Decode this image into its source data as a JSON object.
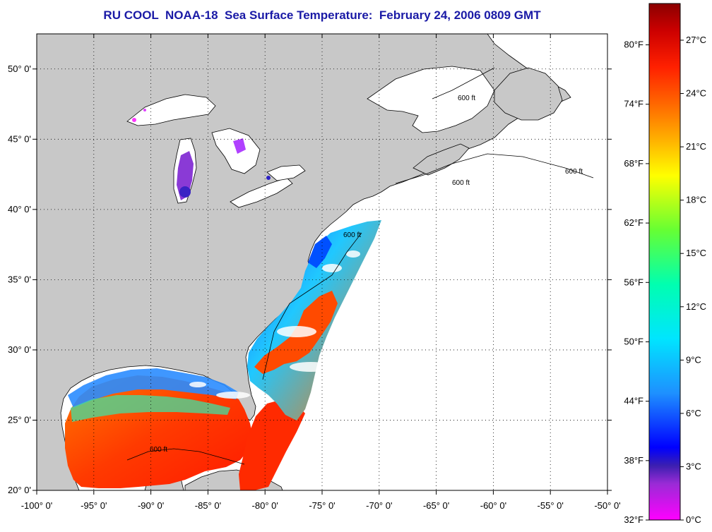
{
  "title": "RU COOL  NOAA-18  Sea Surface Temperature:  February 24, 2006 0809 GMT",
  "map": {
    "lon_range": [
      -100,
      -50
    ],
    "lat_range": [
      20,
      52.5
    ],
    "lon_ticks": [
      {
        "value": -100,
        "label": "-100° 0'"
      },
      {
        "value": -95,
        "label": "-95° 0'"
      },
      {
        "value": -90,
        "label": "-90° 0'"
      },
      {
        "value": -85,
        "label": "-85° 0'"
      },
      {
        "value": -80,
        "label": "-80° 0'"
      },
      {
        "value": -75,
        "label": "-75° 0'"
      },
      {
        "value": -70,
        "label": "-70° 0'"
      },
      {
        "value": -65,
        "label": "-65° 0'"
      },
      {
        "value": -60,
        "label": "-60° 0'"
      },
      {
        "value": -55,
        "label": "-55° 0'"
      },
      {
        "value": -50,
        "label": "-50° 0'"
      }
    ],
    "lat_ticks": [
      {
        "value": 20,
        "label": "20° 0'"
      },
      {
        "value": 25,
        "label": "25° 0'"
      },
      {
        "value": 30,
        "label": "30° 0'"
      },
      {
        "value": 35,
        "label": "35° 0'"
      },
      {
        "value": 40,
        "label": "40° 0'"
      },
      {
        "value": 45,
        "label": "45° 0'"
      },
      {
        "value": 50,
        "label": "50° 0'"
      }
    ],
    "grid": "dotted",
    "isobath_label": "600 ft",
    "colors": {
      "land": "#c8c8c8",
      "water_no_data": "#ffffff",
      "coast": "#000000",
      "title": "#1a1aa6"
    }
  },
  "colorbar": {
    "fahrenheit_labels": [
      "80°F",
      "74°F",
      "68°F",
      "62°F",
      "56°F",
      "50°F",
      "44°F",
      "38°F",
      "32°F"
    ],
    "celsius_labels": [
      "27°C",
      "24°C",
      "21°C",
      "18°C",
      "15°C",
      "12°C",
      "9°C",
      "6°C",
      "3°C",
      "0°C"
    ],
    "stops": [
      {
        "c": 0,
        "color": "#ff00ff"
      },
      {
        "c": 2,
        "color": "#9a2bd6"
      },
      {
        "c": 3,
        "color": "#3b1fb0"
      },
      {
        "c": 4,
        "color": "#0000ff"
      },
      {
        "c": 7,
        "color": "#1e90ff"
      },
      {
        "c": 10,
        "color": "#00e5ff"
      },
      {
        "c": 13,
        "color": "#00ffb0"
      },
      {
        "c": 16,
        "color": "#66ff33"
      },
      {
        "c": 19,
        "color": "#ffff00"
      },
      {
        "c": 21,
        "color": "#ffb000"
      },
      {
        "c": 23,
        "color": "#ff6600"
      },
      {
        "c": 25,
        "color": "#ff2000"
      },
      {
        "c": 27,
        "color": "#cc0000"
      },
      {
        "c": 28.5,
        "color": "#8b0000"
      }
    ]
  }
}
